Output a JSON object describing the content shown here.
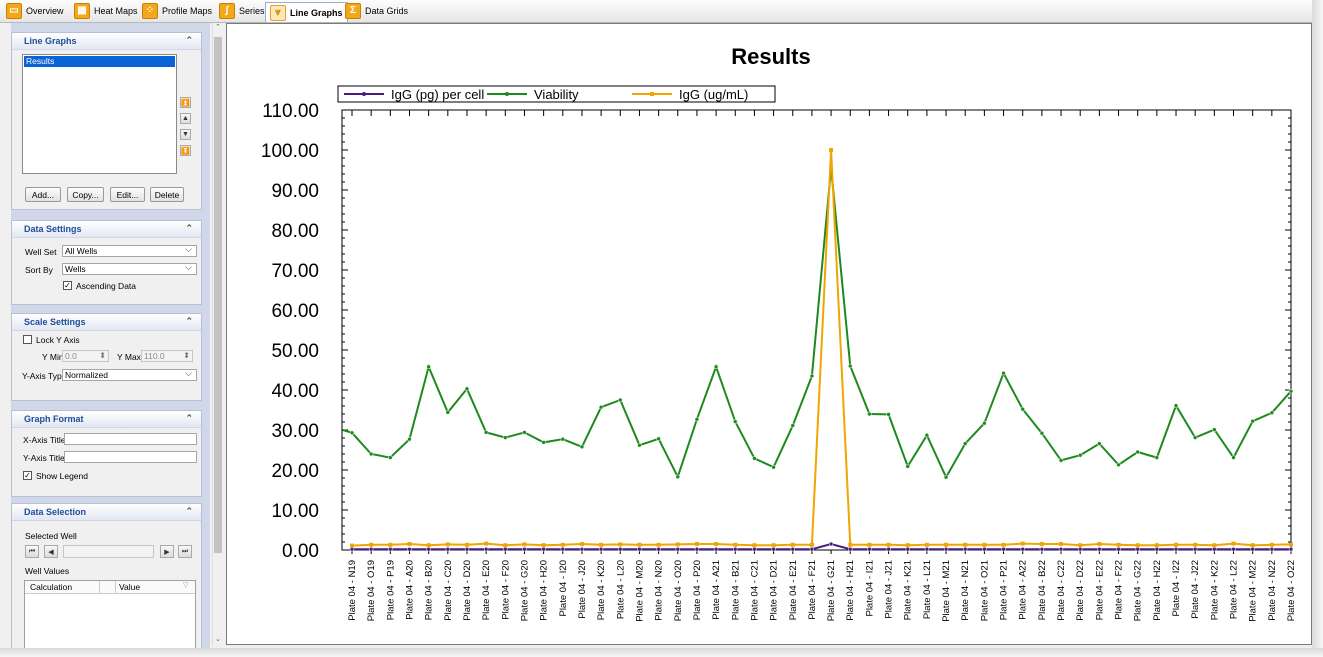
{
  "tabs": [
    {
      "label": "Overview",
      "icon": "overview-icon",
      "glyph": "▭"
    },
    {
      "label": "Heat Maps",
      "icon": "heat-maps-icon",
      "glyph": "▦"
    },
    {
      "label": "Profile Maps",
      "icon": "profile-maps-icon",
      "glyph": "⁘"
    },
    {
      "label": "Series",
      "icon": "series-icon",
      "glyph": "∫"
    },
    {
      "label": "Line Graphs",
      "icon": "line-graphs-icon",
      "glyph": "⩔",
      "active": true
    },
    {
      "label": "Data Grids",
      "icon": "data-grids-icon",
      "glyph": "Σ"
    }
  ],
  "line_graphs": {
    "header": "Line Graphs",
    "list_items": [
      "Results"
    ],
    "selected": "Results",
    "buttons": {
      "add": "Add...",
      "copy": "Copy...",
      "edit": "Edit...",
      "delete": "Delete"
    }
  },
  "data_settings": {
    "header": "Data Settings",
    "well_set_label": "Well Set",
    "well_set_value": "All Wells",
    "sort_by_label": "Sort By",
    "sort_by_value": "Wells",
    "ascending_label": "Ascending Data",
    "ascending_checked": true
  },
  "scale_settings": {
    "header": "Scale Settings",
    "lock_label": "Lock Y Axis",
    "lock_checked": false,
    "ymin_label": "Y Min",
    "ymin_value": "0.0",
    "ymax_label": "Y Max",
    "ymax_value": "110.0",
    "type_label": "Y-Axis Type",
    "type_value": "Normalized"
  },
  "graph_format": {
    "header": "Graph Format",
    "xtitle_label": "X-Axis Title",
    "xtitle_value": "",
    "ytitle_label": "Y-Axis Title",
    "ytitle_value": "",
    "legend_label": "Show Legend",
    "legend_checked": true
  },
  "data_selection": {
    "header": "Data Selection",
    "selected_well_label": "Selected Well",
    "selected_well_value": "",
    "well_values_label": "Well Values",
    "col_calc": "Calculation",
    "col_value": "Value"
  },
  "colors": {
    "igg_per_cell": "#4b1c7f",
    "viability": "#1e8a1e",
    "igg_ugml": "#f0a500",
    "section_header_text": "#1f4c9a"
  },
  "chart_data": {
    "type": "line",
    "title": "Results",
    "xlabel": "",
    "ylabel": "",
    "ylim": [
      0,
      110
    ],
    "yticks": [
      "0.00",
      "10.00",
      "20.00",
      "30.00",
      "40.00",
      "50.00",
      "60.00",
      "70.00",
      "80.00",
      "90.00",
      "100.00",
      "110.00"
    ],
    "legend": "top-left",
    "x": [
      "Plate 04 - N19",
      "Plate 04 - O19",
      "Plate 04 - P19",
      "Plate 04 - A20",
      "Plate 04 - B20",
      "Plate 04 - C20",
      "Plate 04 - D20",
      "Plate 04 - E20",
      "Plate 04 - F20",
      "Plate 04 - G20",
      "Plate 04 - H20",
      "Plate 04 - I20",
      "Plate 04 - J20",
      "Plate 04 - K20",
      "Plate 04 - L20",
      "Plate 04 - M20",
      "Plate 04 - N20",
      "Plate 04 - O20",
      "Plate 04 - P20",
      "Plate 04 - A21",
      "Plate 04 - B21",
      "Plate 04 - C21",
      "Plate 04 - D21",
      "Plate 04 - E21",
      "Plate 04 - F21",
      "Plate 04 - G21",
      "Plate 04 - H21",
      "Plate 04 - I21",
      "Plate 04 - J21",
      "Plate 04 - K21",
      "Plate 04 - L21",
      "Plate 04 - M21",
      "Plate 04 - N21",
      "Plate 04 - O21",
      "Plate 04 - P21",
      "Plate 04 - A22",
      "Plate 04 - B22",
      "Plate 04 - C22",
      "Plate 04 - D22",
      "Plate 04 - E22",
      "Plate 04 - F22",
      "Plate 04 - G22",
      "Plate 04 - H22",
      "Plate 04 - I22",
      "Plate 04 - J22",
      "Plate 04 - K22",
      "Plate 04 - L22",
      "Plate 04 - M22",
      "Plate 04 - N22",
      "Plate 04 - O22"
    ],
    "series": [
      {
        "name": "IgG (pg) per cell",
        "color": "#4b1c7f",
        "values": [
          0.2,
          0.2,
          0.2,
          0.2,
          0.2,
          0.2,
          0.2,
          0.2,
          0.2,
          0.2,
          0.2,
          0.2,
          0.2,
          0.2,
          0.2,
          0.2,
          0.2,
          0.2,
          0.2,
          0.2,
          0.2,
          0.2,
          0.2,
          0.2,
          0.2,
          1.5,
          0.2,
          0.2,
          0.2,
          0.2,
          0.2,
          0.2,
          0.2,
          0.2,
          0.2,
          0.2,
          0.2,
          0.2,
          0.2,
          0.2,
          0.2,
          0.2,
          0.2,
          0.2,
          0.2,
          0.2,
          0.2,
          0.2,
          0.2,
          0.2
        ]
      },
      {
        "name": "Viability",
        "color": "#1e8a1e",
        "values": [
          29.3,
          24,
          23.1,
          27.7,
          45.8,
          34.4,
          40.3,
          29.4,
          28.1,
          29.4,
          26.9,
          27.7,
          25.8,
          35.7,
          37.5,
          26.2,
          27.8,
          18.3,
          32.7,
          45.8,
          32.1,
          22.9,
          20.7,
          31.1,
          43.5,
          95.5,
          46,
          34,
          33.9,
          20.9,
          28.7,
          18.2,
          26.6,
          31.7,
          44.2,
          35.2,
          29.2,
          22.4,
          23.7,
          26.6,
          21.3,
          24.5,
          23.1,
          36.1,
          28.1,
          30.1,
          23.1,
          32.2,
          34.3,
          39.7
        ]
      },
      {
        "name": "IgG (ug/mL)",
        "color": "#f0a500",
        "values": [
          1.1,
          1.3,
          1.3,
          1.5,
          1.2,
          1.4,
          1.3,
          1.6,
          1.2,
          1.4,
          1.2,
          1.3,
          1.5,
          1.3,
          1.4,
          1.3,
          1.3,
          1.4,
          1.5,
          1.5,
          1.3,
          1.2,
          1.2,
          1.3,
          1.3,
          100,
          1.3,
          1.3,
          1.3,
          1.2,
          1.3,
          1.3,
          1.3,
          1.3,
          1.3,
          1.6,
          1.5,
          1.5,
          1.2,
          1.5,
          1.3,
          1.2,
          1.2,
          1.3,
          1.3,
          1.2,
          1.6,
          1.2,
          1.3,
          1.4
        ]
      }
    ]
  }
}
